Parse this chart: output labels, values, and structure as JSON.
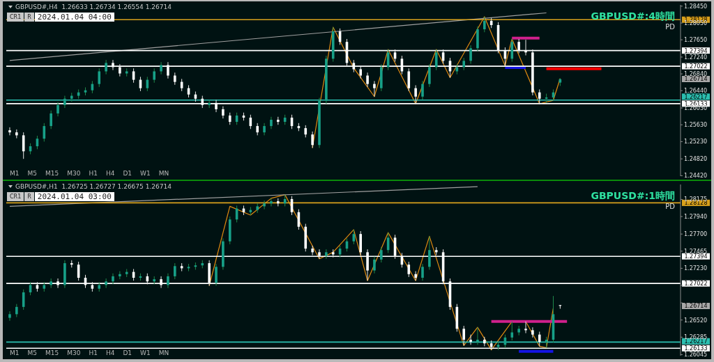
{
  "chart_data": [
    {
      "type": "candlestick",
      "title": "GBPUSD#:4時間",
      "subtitle": "GBPUSD#,H4  1.26633 1.26734 1.26554 1.26714",
      "tick_labels": "y",
      "grid": false,
      "legend": false,
      "categories": [
        null,
        null,
        null,
        null,
        null,
        null,
        null,
        null,
        null,
        null,
        null,
        null,
        null,
        null,
        null,
        null,
        null,
        null,
        null,
        null,
        null,
        null,
        null,
        null,
        null,
        null,
        null,
        null,
        null,
        null,
        null,
        null,
        null,
        null,
        null,
        null,
        null,
        null,
        null,
        null,
        null,
        null,
        null,
        null,
        null,
        null,
        null,
        null,
        null,
        null,
        null,
        null,
        null,
        null,
        null,
        null,
        null,
        null,
        null,
        null,
        null,
        null,
        null,
        null,
        null,
        null,
        null,
        null,
        null,
        null,
        null,
        null,
        null,
        null,
        null,
        null,
        null,
        null,
        null,
        null,
        null,
        null,
        null,
        null,
        null,
        null,
        null,
        null,
        null,
        null,
        null,
        null,
        null,
        null,
        null,
        null,
        null,
        null
      ],
      "ohlc": [
        [
          1.255,
          1.2557,
          1.2538,
          1.2545
        ],
        [
          1.2545,
          1.2552,
          1.2531,
          1.2538
        ],
        [
          1.2538,
          1.2545,
          1.2482,
          1.25
        ],
        [
          1.25,
          1.2519,
          1.2493,
          1.2512
        ],
        [
          1.2512,
          1.2537,
          1.2505,
          1.253
        ],
        [
          1.253,
          1.2567,
          1.2523,
          1.256
        ],
        [
          1.256,
          1.2597,
          1.2553,
          1.259
        ],
        [
          1.259,
          1.2617,
          1.2583,
          1.261
        ],
        [
          1.261,
          1.2632,
          1.2603,
          1.2625
        ],
        [
          1.2625,
          1.2639,
          1.2618,
          1.2632
        ],
        [
          1.2632,
          1.2647,
          1.2625,
          1.264
        ],
        [
          1.264,
          1.2652,
          1.2633,
          1.2645
        ],
        [
          1.2645,
          1.2667,
          1.2638,
          1.266
        ],
        [
          1.266,
          1.2697,
          1.2653,
          1.269
        ],
        [
          1.269,
          1.2717,
          1.2683,
          1.271
        ],
        [
          1.271,
          1.2717,
          1.2693,
          1.27
        ],
        [
          1.27,
          1.2707,
          1.2678,
          1.2685
        ],
        [
          1.2685,
          1.2697,
          1.2678,
          1.269
        ],
        [
          1.269,
          1.2697,
          1.2663,
          1.267
        ],
        [
          1.267,
          1.2677,
          1.2643,
          1.265
        ],
        [
          1.265,
          1.2677,
          1.2643,
          1.267
        ],
        [
          1.267,
          1.2697,
          1.2663,
          1.269
        ],
        [
          1.269,
          1.2712,
          1.2683,
          1.2705
        ],
        [
          1.2705,
          1.2712,
          1.2673,
          1.268
        ],
        [
          1.268,
          1.2687,
          1.2658,
          1.2665
        ],
        [
          1.2665,
          1.2672,
          1.2643,
          1.265
        ],
        [
          1.265,
          1.2657,
          1.2628,
          1.2635
        ],
        [
          1.2635,
          1.2642,
          1.2618,
          1.2625
        ],
        [
          1.2625,
          1.2632,
          1.2603,
          1.261
        ],
        [
          1.261,
          1.2622,
          1.2603,
          1.2615
        ],
        [
          1.2615,
          1.2622,
          1.2593,
          1.26
        ],
        [
          1.26,
          1.2607,
          1.2578,
          1.2585
        ],
        [
          1.2585,
          1.2592,
          1.2563,
          1.257
        ],
        [
          1.257,
          1.2592,
          1.2563,
          1.2585
        ],
        [
          1.2585,
          1.2592,
          1.2573,
          1.258
        ],
        [
          1.258,
          1.2587,
          1.2553,
          1.256
        ],
        [
          1.256,
          1.2567,
          1.2538,
          1.2545
        ],
        [
          1.2545,
          1.2567,
          1.2538,
          1.256
        ],
        [
          1.256,
          1.2582,
          1.2553,
          1.2575
        ],
        [
          1.2575,
          1.2582,
          1.2563,
          1.257
        ],
        [
          1.257,
          1.2587,
          1.2563,
          1.258
        ],
        [
          1.258,
          1.2587,
          1.2553,
          1.256
        ],
        [
          1.256,
          1.2567,
          1.2548,
          1.2555
        ],
        [
          1.2555,
          1.2562,
          1.2533,
          1.254
        ],
        [
          1.254,
          1.2547,
          1.2508,
          1.2515
        ],
        [
          1.2515,
          1.2627,
          1.2508,
          1.262
        ],
        [
          1.262,
          1.2727,
          1.2613,
          1.272
        ],
        [
          1.272,
          1.2795,
          1.2713,
          1.2785
        ],
        [
          1.2785,
          1.2792,
          1.2753,
          1.276
        ],
        [
          1.276,
          1.2767,
          1.2703,
          1.271
        ],
        [
          1.271,
          1.2717,
          1.2688,
          1.2695
        ],
        [
          1.2695,
          1.2702,
          1.2673,
          1.268
        ],
        [
          1.268,
          1.2687,
          1.2653,
          1.266
        ],
        [
          1.266,
          1.2667,
          1.263,
          1.265
        ],
        [
          1.265,
          1.2707,
          1.2643,
          1.27
        ],
        [
          1.27,
          1.2742,
          1.2693,
          1.2735
        ],
        [
          1.2735,
          1.2742,
          1.2713,
          1.272
        ],
        [
          1.272,
          1.2727,
          1.2683,
          1.269
        ],
        [
          1.269,
          1.2697,
          1.2643,
          1.265
        ],
        [
          1.265,
          1.2657,
          1.2613,
          1.263
        ],
        [
          1.263,
          1.2667,
          1.2623,
          1.266
        ],
        [
          1.266,
          1.2707,
          1.2653,
          1.27
        ],
        [
          1.27,
          1.2742,
          1.2693,
          1.2735
        ],
        [
          1.2735,
          1.2742,
          1.2708,
          1.2715
        ],
        [
          1.2715,
          1.2722,
          1.2675,
          1.269
        ],
        [
          1.269,
          1.2707,
          1.2683,
          1.27
        ],
        [
          1.27,
          1.2722,
          1.2693,
          1.2715
        ],
        [
          1.2715,
          1.2752,
          1.2708,
          1.2745
        ],
        [
          1.2745,
          1.2797,
          1.2738,
          1.279
        ],
        [
          1.279,
          1.282,
          1.2783,
          1.281
        ],
        [
          1.281,
          1.2817,
          1.2793,
          1.28
        ],
        [
          1.28,
          1.2807,
          1.2733,
          1.274
        ],
        [
          1.274,
          1.2747,
          1.2703,
          1.272
        ],
        [
          1.272,
          1.2767,
          1.2713,
          1.276
        ],
        [
          1.276,
          1.2767,
          1.2733,
          1.274
        ],
        [
          1.274,
          1.2765,
          1.2728,
          1.2735
        ],
        [
          1.2735,
          1.2742,
          1.2633,
          1.264
        ],
        [
          1.264,
          1.2647,
          1.2613,
          1.2625
        ],
        [
          1.2625,
          1.2637,
          1.2615,
          1.2628
        ],
        [
          1.2628,
          1.2647,
          1.2621,
          1.264
        ],
        [
          1.26633,
          1.26734,
          1.26554,
          1.26714
        ],
        null,
        null,
        null,
        null,
        null,
        null,
        null,
        null,
        null,
        null,
        null,
        null,
        null,
        null,
        null,
        null,
        null
      ],
      "series": [
        {
          "type": "line",
          "color": "#e08a10",
          "values": [
            null,
            null,
            null,
            null,
            null,
            null,
            null,
            null,
            null,
            null,
            null,
            null,
            null,
            null,
            null,
            null,
            null,
            null,
            null,
            null,
            null,
            null,
            null,
            null,
            null,
            null,
            null,
            null,
            null,
            null,
            null,
            null,
            null,
            null,
            null,
            null,
            null,
            null,
            null,
            null,
            null,
            null,
            null,
            null,
            1.2508,
            null,
            null,
            1.2795,
            null,
            null,
            1.2698,
            null,
            null,
            1.263,
            null,
            1.2742,
            null,
            null,
            null,
            1.2613,
            null,
            null,
            1.2742,
            null,
            1.2675,
            null,
            null,
            null,
            null,
            1.282,
            null,
            null,
            1.2703,
            1.2767,
            null,
            null,
            null,
            1.2613,
            null,
            1.2621,
            1.2673,
            null,
            null,
            null,
            null,
            null,
            null,
            null,
            null,
            null,
            null,
            null,
            null,
            null,
            null,
            null,
            null,
            null
          ]
        },
        {
          "type": "line",
          "color": "#a0a0a0",
          "values": [
            1.2716,
            null,
            null,
            null,
            null,
            null,
            null,
            null,
            null,
            null,
            null,
            null,
            null,
            null,
            null,
            null,
            null,
            null,
            null,
            null,
            null,
            null,
            null,
            null,
            null,
            null,
            null,
            null,
            null,
            null,
            null,
            null,
            null,
            null,
            null,
            null,
            null,
            null,
            null,
            null,
            null,
            null,
            null,
            null,
            null,
            null,
            null,
            null,
            null,
            null,
            null,
            null,
            null,
            null,
            null,
            null,
            null,
            null,
            null,
            null,
            null,
            null,
            null,
            null,
            null,
            null,
            null,
            null,
            null,
            null,
            null,
            null,
            null,
            null,
            null,
            null,
            null,
            null,
            1.2829,
            null,
            null,
            null,
            null,
            null,
            null,
            null,
            null,
            null,
            null,
            null,
            null,
            null,
            null,
            null,
            null,
            null,
            null,
            null
          ]
        },
        {
          "type": "line",
          "color": "#d0208c",
          "values": [
            null,
            null,
            null,
            null,
            null,
            null,
            null,
            null,
            null,
            null,
            null,
            null,
            null,
            null,
            null,
            null,
            null,
            null,
            null,
            null,
            null,
            null,
            null,
            null,
            null,
            null,
            null,
            null,
            null,
            null,
            null,
            null,
            null,
            null,
            null,
            null,
            null,
            null,
            null,
            null,
            null,
            null,
            null,
            null,
            null,
            null,
            null,
            null,
            null,
            null,
            null,
            null,
            null,
            null,
            null,
            null,
            null,
            null,
            null,
            null,
            null,
            null,
            null,
            null,
            null,
            null,
            null,
            null,
            null,
            null,
            null,
            null,
            null,
            1.2769,
            null,
            null,
            null,
            1.2769,
            null,
            null,
            null,
            null,
            null,
            null,
            null,
            null,
            null,
            null,
            null,
            null,
            null,
            null,
            null,
            null,
            null,
            null,
            null,
            null
          ]
        },
        {
          "type": "line",
          "color": "#1414e6",
          "values": [
            null,
            null,
            null,
            null,
            null,
            null,
            null,
            null,
            null,
            null,
            null,
            null,
            null,
            null,
            null,
            null,
            null,
            null,
            null,
            null,
            null,
            null,
            null,
            null,
            null,
            null,
            null,
            null,
            null,
            null,
            null,
            null,
            null,
            null,
            null,
            null,
            null,
            null,
            null,
            null,
            null,
            null,
            null,
            null,
            null,
            null,
            null,
            null,
            null,
            null,
            null,
            null,
            null,
            null,
            null,
            null,
            null,
            null,
            null,
            null,
            null,
            null,
            null,
            null,
            null,
            null,
            null,
            null,
            null,
            null,
            null,
            null,
            1.2699,
            null,
            null,
            1.2699,
            null,
            null,
            null,
            null,
            null,
            null,
            null,
            null,
            null,
            null,
            null,
            null,
            null,
            null,
            null,
            null,
            null,
            null,
            null,
            null,
            null,
            null
          ]
        },
        {
          "type": "line",
          "color": "#ff0000",
          "values": [
            null,
            null,
            null,
            null,
            null,
            null,
            null,
            null,
            null,
            null,
            null,
            null,
            null,
            null,
            null,
            null,
            null,
            null,
            null,
            null,
            null,
            null,
            null,
            null,
            null,
            null,
            null,
            null,
            null,
            null,
            null,
            null,
            null,
            null,
            null,
            null,
            null,
            null,
            null,
            null,
            null,
            null,
            null,
            null,
            null,
            null,
            null,
            null,
            null,
            null,
            null,
            null,
            null,
            null,
            null,
            null,
            null,
            null,
            null,
            null,
            null,
            null,
            null,
            null,
            null,
            null,
            null,
            null,
            null,
            null,
            null,
            null,
            null,
            null,
            null,
            null,
            null,
            null,
            1.2696,
            null,
            null,
            null,
            null,
            null,
            null,
            null,
            1.2696,
            null,
            null,
            null,
            null,
            null,
            null,
            null,
            null,
            null,
            null,
            null
          ]
        }
      ],
      "ylim": [
        1.2441,
        1.2848
      ],
      "yticks": [
        {
          "value": 1.2845,
          "label": "1.28450"
        },
        {
          "value": 1.2805,
          "label": "1.28050"
        },
        {
          "value": 1.2765,
          "label": "1.27650"
        },
        {
          "value": 1.2724,
          "label": "1.27240"
        },
        {
          "value": 1.2684,
          "label": "1.26840"
        },
        {
          "value": 1.2644,
          "label": "1.26440"
        },
        {
          "value": 1.2603,
          "label": "1.26030"
        },
        {
          "value": 1.2563,
          "label": "1.25630"
        },
        {
          "value": 1.2523,
          "label": "1.25230"
        },
        {
          "value": 1.2482,
          "label": "1.24820"
        },
        {
          "value": 1.2442,
          "label": "1.24420"
        }
      ],
      "ref_lines": [
        {
          "axis": "y",
          "value": 1.28128,
          "label": "1.28128",
          "color": "#d9a11c"
        },
        {
          "axis": "y",
          "value": 1.27394,
          "label": "1.27394",
          "color": "#ffffff"
        },
        {
          "axis": "y",
          "value": 1.27022,
          "label": "1.27022",
          "color": "#ffffff"
        },
        {
          "axis": "y",
          "value": 1.26133,
          "label": "1.26133",
          "color": "#ffffff"
        },
        {
          "axis": "y",
          "value": 1.26217,
          "label": "1.26217",
          "color": "#2bbfb0"
        }
      ],
      "annotations": [
        "CR1",
        "R",
        "2024.01.04 04:00",
        "PD",
        "M1",
        "M5",
        "M15",
        "M30",
        "H1",
        "H4",
        "D1",
        "W1",
        "MN",
        "1.26714"
      ]
    },
    {
      "type": "candlestick",
      "title": "GBPUSD#:1時間",
      "subtitle": "GBPUSD#,H1  1.26725 1.26727 1.26675 1.26714",
      "tick_labels": "y",
      "grid": false,
      "legend": false,
      "categories": [
        null,
        null,
        null,
        null,
        null,
        null,
        null,
        null,
        null,
        null,
        null,
        null,
        null,
        null,
        null,
        null,
        null,
        null,
        null,
        null,
        null,
        null,
        null,
        null,
        null,
        null,
        null,
        null,
        null,
        null,
        null,
        null,
        null,
        null,
        null,
        null,
        null,
        null,
        null,
        null,
        null,
        null,
        null,
        null,
        null,
        null,
        null,
        null,
        null,
        null,
        null,
        null,
        null,
        null,
        null,
        null,
        null,
        null,
        null,
        null,
        null,
        null,
        null,
        null,
        null,
        null,
        null,
        null,
        null,
        null,
        null,
        null,
        null,
        null,
        null,
        null,
        null,
        null,
        null,
        null,
        null,
        null,
        null,
        null,
        null,
        null,
        null,
        null,
        null,
        null,
        null,
        null,
        null,
        null,
        null,
        null,
        null,
        null
      ],
      "ohlc": [
        [
          1.2655,
          1.2664,
          1.2651,
          1.266
        ],
        [
          1.266,
          1.2674,
          1.2656,
          1.267
        ],
        [
          1.267,
          1.2694,
          1.2666,
          1.269
        ],
        [
          1.269,
          1.2704,
          1.2686,
          1.27
        ],
        [
          1.27,
          1.2704,
          1.2691,
          1.2695
        ],
        [
          1.2695,
          1.2704,
          1.2691,
          1.27
        ],
        [
          1.27,
          1.2709,
          1.2696,
          1.2705
        ],
        [
          1.2705,
          1.2709,
          1.2696,
          1.27
        ],
        [
          1.27,
          1.2734,
          1.2696,
          1.273
        ],
        [
          1.273,
          1.2734,
          1.2724,
          1.2728
        ],
        [
          1.2728,
          1.2732,
          1.2706,
          1.271
        ],
        [
          1.271,
          1.2714,
          1.2696,
          1.27
        ],
        [
          1.27,
          1.2704,
          1.2691,
          1.2695
        ],
        [
          1.2695,
          1.2704,
          1.2691,
          1.27
        ],
        [
          1.27,
          1.2709,
          1.2696,
          1.2705
        ],
        [
          1.2705,
          1.2716,
          1.2701,
          1.2712
        ],
        [
          1.2712,
          1.2719,
          1.2708,
          1.2715
        ],
        [
          1.2715,
          1.2722,
          1.2711,
          1.2718
        ],
        [
          1.2718,
          1.2722,
          1.2706,
          1.271
        ],
        [
          1.271,
          1.2716,
          1.2706,
          1.2712
        ],
        [
          1.2712,
          1.2716,
          1.2701,
          1.2705
        ],
        [
          1.2705,
          1.2712,
          1.2701,
          1.2708
        ],
        [
          1.2708,
          1.2712,
          1.2696,
          1.27
        ],
        [
          1.27,
          1.2716,
          1.2696,
          1.2712
        ],
        [
          1.2712,
          1.273,
          1.2708,
          1.2726
        ],
        [
          1.2726,
          1.273,
          1.2719,
          1.2723
        ],
        [
          1.2723,
          1.2729,
          1.2719,
          1.2725
        ],
        [
          1.2725,
          1.2731,
          1.2721,
          1.2727
        ],
        [
          1.2727,
          1.2734,
          1.2723,
          1.273
        ],
        [
          1.273,
          1.2734,
          1.2699,
          1.2703
        ],
        [
          1.2703,
          1.2729,
          1.2699,
          1.2725
        ],
        [
          1.2725,
          1.2764,
          1.2721,
          1.276
        ],
        [
          1.276,
          1.2794,
          1.2756,
          1.279
        ],
        [
          1.279,
          1.2809,
          1.2786,
          1.2805
        ],
        [
          1.2805,
          1.2809,
          1.2796,
          1.28
        ],
        [
          1.28,
          1.2807,
          1.2796,
          1.2803
        ],
        [
          1.2803,
          1.2812,
          1.2799,
          1.2808
        ],
        [
          1.2808,
          1.2816,
          1.2804,
          1.2812
        ],
        [
          1.2812,
          1.2819,
          1.2808,
          1.2815
        ],
        [
          1.2815,
          1.2819,
          1.2808,
          1.2812
        ],
        [
          1.2812,
          1.2824,
          1.2808,
          1.2818
        ],
        [
          1.2818,
          1.2822,
          1.2796,
          1.28
        ],
        [
          1.28,
          1.2804,
          1.2776,
          1.278
        ],
        [
          1.278,
          1.2784,
          1.2746,
          1.275
        ],
        [
          1.275,
          1.2754,
          1.2741,
          1.2745
        ],
        [
          1.2745,
          1.2749,
          1.2736,
          1.274
        ],
        [
          1.274,
          1.2749,
          1.2736,
          1.2745
        ],
        [
          1.2745,
          1.2749,
          1.2738,
          1.2742
        ],
        [
          1.2742,
          1.2754,
          1.2738,
          1.275
        ],
        [
          1.275,
          1.2764,
          1.2746,
          1.276
        ],
        [
          1.276,
          1.2776,
          1.2756,
          1.277
        ],
        [
          1.277,
          1.2774,
          1.2741,
          1.2745
        ],
        [
          1.2745,
          1.2749,
          1.2706,
          1.272
        ],
        [
          1.272,
          1.2739,
          1.2716,
          1.2735
        ],
        [
          1.2735,
          1.2752,
          1.2731,
          1.2748
        ],
        [
          1.2748,
          1.2772,
          1.2744,
          1.2765
        ],
        [
          1.2765,
          1.2769,
          1.2736,
          1.274
        ],
        [
          1.274,
          1.2744,
          1.2724,
          1.2728
        ],
        [
          1.2728,
          1.2732,
          1.2711,
          1.2715
        ],
        [
          1.2715,
          1.2719,
          1.2706,
          1.271
        ],
        [
          1.271,
          1.2729,
          1.2706,
          1.2725
        ],
        [
          1.2725,
          1.2767,
          1.2721,
          1.2748
        ],
        [
          1.2748,
          1.2752,
          1.2741,
          1.2745
        ],
        [
          1.2745,
          1.2749,
          1.2701,
          1.2705
        ],
        [
          1.2705,
          1.2709,
          1.2666,
          1.267
        ],
        [
          1.267,
          1.2674,
          1.2636,
          1.264
        ],
        [
          1.264,
          1.2644,
          1.2617,
          1.2625
        ],
        [
          1.2625,
          1.2632,
          1.2618,
          1.2622
        ],
        [
          1.2622,
          1.2642,
          1.2618,
          1.2625
        ],
        [
          1.2625,
          1.2629,
          1.2616,
          1.262
        ],
        [
          1.262,
          1.2624,
          1.2611,
          1.2615
        ],
        [
          1.2615,
          1.2622,
          1.2611,
          1.2618
        ],
        [
          1.2618,
          1.2632,
          1.2614,
          1.2628
        ],
        [
          1.2628,
          1.265,
          1.2624,
          1.2635
        ],
        [
          1.2635,
          1.2644,
          1.2631,
          1.264
        ],
        [
          1.264,
          1.265,
          1.2634,
          1.2638
        ],
        [
          1.2638,
          1.2642,
          1.2628,
          1.2632
        ],
        [
          1.2632,
          1.2636,
          1.2616,
          1.2622
        ],
        [
          1.2622,
          1.2629,
          1.2614,
          1.2625
        ],
        [
          1.2625,
          1.2685,
          1.2621,
          1.266
        ],
        [
          1.26725,
          1.26727,
          1.26675,
          1.26714
        ],
        null,
        null,
        null,
        null,
        null,
        null,
        null,
        null,
        null,
        null,
        null,
        null,
        null,
        null,
        null,
        null,
        null
      ],
      "series": [
        {
          "type": "line",
          "color": "#e08a10",
          "values": [
            null,
            null,
            null,
            null,
            null,
            null,
            null,
            null,
            null,
            null,
            null,
            null,
            null,
            null,
            null,
            null,
            null,
            null,
            null,
            null,
            null,
            null,
            null,
            null,
            null,
            null,
            null,
            null,
            null,
            1.2699,
            null,
            null,
            1.2808,
            null,
            null,
            1.2796,
            null,
            null,
            1.2819,
            null,
            1.2824,
            null,
            null,
            null,
            null,
            1.2736,
            null,
            1.2745,
            null,
            null,
            1.2776,
            null,
            1.2706,
            null,
            null,
            1.2772,
            null,
            null,
            null,
            1.2706,
            null,
            1.2767,
            null,
            null,
            null,
            null,
            1.2617,
            null,
            1.2642,
            null,
            1.2611,
            null,
            null,
            1.265,
            null,
            1.265,
            null,
            1.2616,
            1.2614,
            1.2668,
            null,
            null,
            null,
            null,
            null,
            null,
            null,
            null,
            null,
            null,
            null,
            null,
            null,
            null,
            null,
            null,
            null,
            null
          ]
        },
        {
          "type": "line",
          "color": "#a0a0a0",
          "values": [
            1.2808,
            null,
            null,
            null,
            null,
            null,
            null,
            null,
            null,
            null,
            null,
            null,
            null,
            null,
            null,
            null,
            null,
            null,
            null,
            null,
            null,
            null,
            null,
            null,
            null,
            null,
            null,
            null,
            null,
            null,
            null,
            null,
            null,
            null,
            null,
            null,
            null,
            null,
            null,
            null,
            null,
            null,
            null,
            null,
            null,
            null,
            null,
            null,
            null,
            null,
            null,
            null,
            null,
            null,
            null,
            null,
            null,
            null,
            null,
            null,
            null,
            null,
            null,
            null,
            null,
            null,
            null,
            null,
            1.2835,
            null,
            null,
            null,
            null,
            null,
            null,
            null,
            null,
            null,
            null,
            null,
            null,
            null,
            null,
            null,
            null,
            null,
            null,
            null,
            null,
            null,
            null,
            null,
            null,
            null,
            null,
            null,
            null,
            null
          ]
        },
        {
          "type": "line",
          "color": "#d0208c",
          "values": [
            null,
            null,
            null,
            null,
            null,
            null,
            null,
            null,
            null,
            null,
            null,
            null,
            null,
            null,
            null,
            null,
            null,
            null,
            null,
            null,
            null,
            null,
            null,
            null,
            null,
            null,
            null,
            null,
            null,
            null,
            null,
            null,
            null,
            null,
            null,
            null,
            null,
            null,
            null,
            null,
            null,
            null,
            null,
            null,
            null,
            null,
            null,
            null,
            null,
            null,
            null,
            null,
            null,
            null,
            null,
            null,
            null,
            null,
            null,
            null,
            null,
            null,
            null,
            null,
            null,
            null,
            null,
            null,
            null,
            null,
            1.265,
            null,
            null,
            null,
            null,
            null,
            null,
            null,
            null,
            null,
            null,
            1.265,
            null,
            null,
            null,
            null,
            null,
            null,
            null,
            null,
            null,
            null,
            null,
            null,
            null,
            null,
            null,
            null
          ]
        },
        {
          "type": "line",
          "color": "#1414e6",
          "values": [
            null,
            null,
            null,
            null,
            null,
            null,
            null,
            null,
            null,
            null,
            null,
            null,
            null,
            null,
            null,
            null,
            null,
            null,
            null,
            null,
            null,
            null,
            null,
            null,
            null,
            null,
            null,
            null,
            null,
            null,
            null,
            null,
            null,
            null,
            null,
            null,
            null,
            null,
            null,
            null,
            null,
            null,
            null,
            null,
            null,
            null,
            null,
            null,
            null,
            null,
            null,
            null,
            null,
            null,
            null,
            null,
            null,
            null,
            null,
            null,
            null,
            null,
            null,
            null,
            null,
            null,
            null,
            null,
            null,
            null,
            null,
            null,
            null,
            null,
            1.2609,
            null,
            null,
            null,
            null,
            1.2609,
            null,
            null,
            null,
            null,
            null,
            null,
            null,
            null,
            null,
            null,
            null,
            null,
            null,
            null,
            null,
            null,
            null,
            null
          ]
        }
      ],
      "ylim": [
        1.2603,
        1.2838
      ],
      "yticks": [
        {
          "value": 1.28175,
          "label": "1.28175"
        },
        {
          "value": 1.2794,
          "label": "1.27940"
        },
        {
          "value": 1.277,
          "label": "1.27700"
        },
        {
          "value": 1.27465,
          "label": "1.27465"
        },
        {
          "value": 1.2723,
          "label": "1.27230"
        },
        {
          "value": 1.26995,
          "label": null
        },
        {
          "value": 1.26755,
          "label": null
        },
        {
          "value": 1.2652,
          "label": "1.26520"
        },
        {
          "value": 1.26285,
          "label": "1.26285"
        },
        {
          "value": 1.26045,
          "label": "1.26045"
        }
      ],
      "ref_lines": [
        {
          "axis": "y",
          "value": 1.28128,
          "label": "1.28128",
          "color": "#d9a11c"
        },
        {
          "axis": "y",
          "value": 1.27394,
          "label": "1.27394",
          "color": "#ffffff"
        },
        {
          "axis": "y",
          "value": 1.27022,
          "label": "1.27022",
          "color": "#ffffff"
        },
        {
          "axis": "y",
          "value": 1.26217,
          "label": "1.26217",
          "color": "#2bbfb0"
        },
        {
          "axis": "y",
          "value": 1.26133,
          "label": "1.26133",
          "color": "#ffffff"
        }
      ],
      "annotations": [
        "CR1",
        "R",
        "2024.01.04 03:00",
        "PD",
        "M1",
        "M5",
        "M15",
        "M30",
        "H1",
        "H4",
        "D1",
        "W1",
        "MN",
        "1.26714"
      ]
    }
  ]
}
